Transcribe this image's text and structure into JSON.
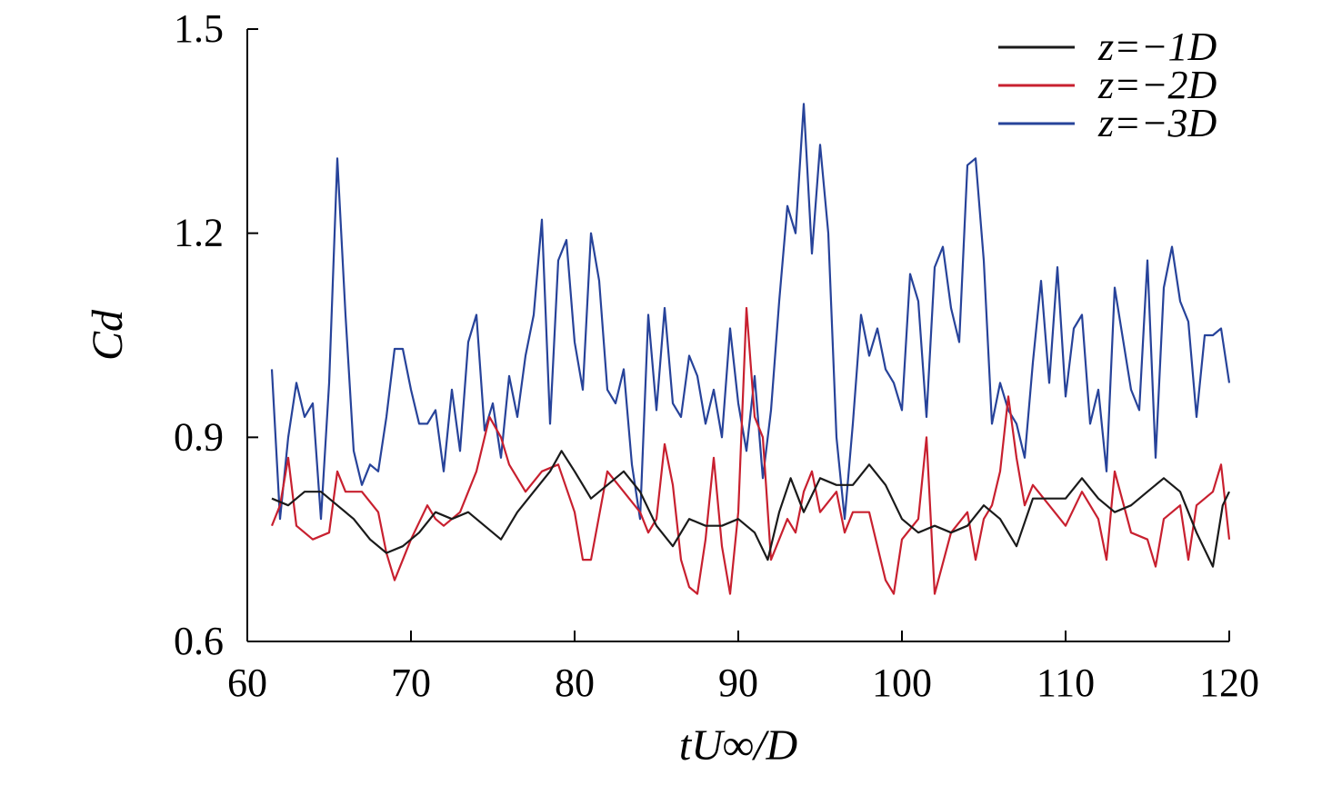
{
  "chart_data": {
    "type": "line",
    "xlabel": "tU∞/D",
    "ylabel": "Cd",
    "xlim": [
      60,
      120
    ],
    "ylim": [
      0.6,
      1.5
    ],
    "xticks": [
      "60",
      "70",
      "80",
      "90",
      "100",
      "110",
      "120"
    ],
    "yticks": [
      "0.6",
      "0.9",
      "1.2",
      "1.5"
    ],
    "grid": false,
    "legend_position": "top-right",
    "series": [
      {
        "name": "z=−1D",
        "color": "#1a1a1a",
        "points": [
          [
            61.5,
            0.81
          ],
          [
            62.5,
            0.8
          ],
          [
            63.5,
            0.82
          ],
          [
            64.5,
            0.82
          ],
          [
            65.5,
            0.8
          ],
          [
            66.5,
            0.78
          ],
          [
            67.5,
            0.75
          ],
          [
            68.5,
            0.73
          ],
          [
            69.5,
            0.74
          ],
          [
            70.5,
            0.76
          ],
          [
            71.5,
            0.79
          ],
          [
            72.5,
            0.78
          ],
          [
            73.5,
            0.79
          ],
          [
            74.5,
            0.77
          ],
          [
            75.5,
            0.75
          ],
          [
            76.5,
            0.79
          ],
          [
            77.5,
            0.82
          ],
          [
            78.5,
            0.85
          ],
          [
            79.2,
            0.88
          ],
          [
            80,
            0.85
          ],
          [
            81,
            0.81
          ],
          [
            82,
            0.83
          ],
          [
            83,
            0.85
          ],
          [
            84,
            0.82
          ],
          [
            85,
            0.77
          ],
          [
            86,
            0.74
          ],
          [
            87,
            0.78
          ],
          [
            88,
            0.77
          ],
          [
            89,
            0.77
          ],
          [
            90,
            0.78
          ],
          [
            91,
            0.76
          ],
          [
            91.8,
            0.72
          ],
          [
            92.5,
            0.79
          ],
          [
            93.2,
            0.84
          ],
          [
            94,
            0.79
          ],
          [
            95,
            0.84
          ],
          [
            96,
            0.83
          ],
          [
            97,
            0.83
          ],
          [
            98,
            0.86
          ],
          [
            99,
            0.83
          ],
          [
            100,
            0.78
          ],
          [
            101,
            0.76
          ],
          [
            102,
            0.77
          ],
          [
            103,
            0.76
          ],
          [
            104,
            0.77
          ],
          [
            105,
            0.8
          ],
          [
            106,
            0.78
          ],
          [
            107,
            0.74
          ],
          [
            108,
            0.81
          ],
          [
            109,
            0.81
          ],
          [
            110,
            0.81
          ],
          [
            111,
            0.84
          ],
          [
            112,
            0.81
          ],
          [
            113,
            0.79
          ],
          [
            114,
            0.8
          ],
          [
            115,
            0.82
          ],
          [
            116,
            0.84
          ],
          [
            117,
            0.82
          ],
          [
            118,
            0.76
          ],
          [
            119,
            0.71
          ],
          [
            119.6,
            0.8
          ],
          [
            120,
            0.82
          ]
        ]
      },
      {
        "name": "z=−2D",
        "color": "#c8202f",
        "points": [
          [
            61.5,
            0.77
          ],
          [
            62,
            0.8
          ],
          [
            62.5,
            0.87
          ],
          [
            63,
            0.77
          ],
          [
            64,
            0.75
          ],
          [
            65,
            0.76
          ],
          [
            65.5,
            0.85
          ],
          [
            66,
            0.82
          ],
          [
            67,
            0.82
          ],
          [
            68,
            0.79
          ],
          [
            68.5,
            0.73
          ],
          [
            69,
            0.69
          ],
          [
            70,
            0.75
          ],
          [
            71,
            0.8
          ],
          [
            71.5,
            0.78
          ],
          [
            72,
            0.77
          ],
          [
            73,
            0.79
          ],
          [
            74,
            0.85
          ],
          [
            74.8,
            0.93
          ],
          [
            75.5,
            0.9
          ],
          [
            76,
            0.86
          ],
          [
            77,
            0.82
          ],
          [
            78,
            0.85
          ],
          [
            79,
            0.86
          ],
          [
            80,
            0.79
          ],
          [
            80.5,
            0.72
          ],
          [
            81,
            0.72
          ],
          [
            82,
            0.85
          ],
          [
            83,
            0.82
          ],
          [
            84,
            0.79
          ],
          [
            84.5,
            0.76
          ],
          [
            85,
            0.78
          ],
          [
            85.5,
            0.89
          ],
          [
            86,
            0.83
          ],
          [
            86.5,
            0.72
          ],
          [
            87,
            0.68
          ],
          [
            87.5,
            0.67
          ],
          [
            88,
            0.75
          ],
          [
            88.5,
            0.87
          ],
          [
            89,
            0.74
          ],
          [
            89.5,
            0.67
          ],
          [
            90,
            0.79
          ],
          [
            90.5,
            1.09
          ],
          [
            91,
            0.93
          ],
          [
            91.5,
            0.9
          ],
          [
            92,
            0.72
          ],
          [
            93,
            0.78
          ],
          [
            93.5,
            0.76
          ],
          [
            94,
            0.82
          ],
          [
            94.5,
            0.85
          ],
          [
            95,
            0.79
          ],
          [
            96,
            0.82
          ],
          [
            96.5,
            0.76
          ],
          [
            97,
            0.79
          ],
          [
            98,
            0.79
          ],
          [
            98.5,
            0.74
          ],
          [
            99,
            0.69
          ],
          [
            99.5,
            0.67
          ],
          [
            100,
            0.75
          ],
          [
            101,
            0.78
          ],
          [
            101.5,
            0.9
          ],
          [
            102,
            0.67
          ],
          [
            103,
            0.76
          ],
          [
            104,
            0.79
          ],
          [
            104.5,
            0.72
          ],
          [
            105,
            0.78
          ],
          [
            105.5,
            0.8
          ],
          [
            106,
            0.85
          ],
          [
            106.5,
            0.96
          ],
          [
            107,
            0.87
          ],
          [
            107.5,
            0.8
          ],
          [
            108,
            0.83
          ],
          [
            109,
            0.8
          ],
          [
            110,
            0.77
          ],
          [
            111,
            0.82
          ],
          [
            112,
            0.78
          ],
          [
            112.5,
            0.72
          ],
          [
            113,
            0.85
          ],
          [
            114,
            0.76
          ],
          [
            115,
            0.75
          ],
          [
            115.5,
            0.71
          ],
          [
            116,
            0.78
          ],
          [
            117,
            0.8
          ],
          [
            117.5,
            0.72
          ],
          [
            118,
            0.8
          ],
          [
            119,
            0.82
          ],
          [
            119.5,
            0.86
          ],
          [
            120,
            0.75
          ]
        ]
      },
      {
        "name": "z=−3D",
        "color": "#27439a",
        "points": [
          [
            61.5,
            1.0
          ],
          [
            62,
            0.78
          ],
          [
            62.5,
            0.9
          ],
          [
            63,
            0.98
          ],
          [
            63.5,
            0.93
          ],
          [
            64,
            0.95
          ],
          [
            64.5,
            0.78
          ],
          [
            65,
            0.98
          ],
          [
            65.5,
            1.31
          ],
          [
            66,
            1.08
          ],
          [
            66.5,
            0.88
          ],
          [
            67,
            0.83
          ],
          [
            67.5,
            0.86
          ],
          [
            68,
            0.85
          ],
          [
            68.5,
            0.93
          ],
          [
            69,
            1.03
          ],
          [
            69.5,
            1.03
          ],
          [
            70,
            0.97
          ],
          [
            70.5,
            0.92
          ],
          [
            71,
            0.92
          ],
          [
            71.5,
            0.94
          ],
          [
            72,
            0.85
          ],
          [
            72.5,
            0.97
          ],
          [
            73,
            0.88
          ],
          [
            73.5,
            1.04
          ],
          [
            74,
            1.08
          ],
          [
            74.5,
            0.91
          ],
          [
            75,
            0.95
          ],
          [
            75.5,
            0.87
          ],
          [
            76,
            0.99
          ],
          [
            76.5,
            0.93
          ],
          [
            77,
            1.02
          ],
          [
            77.5,
            1.08
          ],
          [
            78,
            1.22
          ],
          [
            78.5,
            0.92
          ],
          [
            79,
            1.16
          ],
          [
            79.5,
            1.19
          ],
          [
            80,
            1.04
          ],
          [
            80.5,
            0.97
          ],
          [
            81,
            1.2
          ],
          [
            81.5,
            1.13
          ],
          [
            82,
            0.97
          ],
          [
            82.5,
            0.95
          ],
          [
            83,
            1.0
          ],
          [
            83.5,
            0.86
          ],
          [
            84,
            0.78
          ],
          [
            84.5,
            1.08
          ],
          [
            85,
            0.94
          ],
          [
            85.5,
            1.09
          ],
          [
            86,
            0.95
          ],
          [
            86.5,
            0.93
          ],
          [
            87,
            1.02
          ],
          [
            87.5,
            0.99
          ],
          [
            88,
            0.92
          ],
          [
            88.5,
            0.97
          ],
          [
            89,
            0.9
          ],
          [
            89.5,
            1.06
          ],
          [
            90,
            0.95
          ],
          [
            90.5,
            0.88
          ],
          [
            91,
            0.99
          ],
          [
            91.5,
            0.84
          ],
          [
            92,
            0.94
          ],
          [
            92.5,
            1.1
          ],
          [
            93,
            1.24
          ],
          [
            93.5,
            1.2
          ],
          [
            94,
            1.39
          ],
          [
            94.5,
            1.17
          ],
          [
            95,
            1.33
          ],
          [
            95.5,
            1.2
          ],
          [
            96,
            0.9
          ],
          [
            96.5,
            0.78
          ],
          [
            97,
            0.92
          ],
          [
            97.5,
            1.08
          ],
          [
            98,
            1.02
          ],
          [
            98.5,
            1.06
          ],
          [
            99,
            1.0
          ],
          [
            99.5,
            0.98
          ],
          [
            100,
            0.94
          ],
          [
            100.5,
            1.14
          ],
          [
            101,
            1.1
          ],
          [
            101.5,
            0.93
          ],
          [
            102,
            1.15
          ],
          [
            102.5,
            1.18
          ],
          [
            103,
            1.09
          ],
          [
            103.5,
            1.04
          ],
          [
            104,
            1.3
          ],
          [
            104.5,
            1.31
          ],
          [
            105,
            1.16
          ],
          [
            105.5,
            0.92
          ],
          [
            106,
            0.98
          ],
          [
            106.5,
            0.94
          ],
          [
            107,
            0.92
          ],
          [
            107.5,
            0.87
          ],
          [
            108,
            1.01
          ],
          [
            108.5,
            1.13
          ],
          [
            109,
            0.98
          ],
          [
            109.5,
            1.15
          ],
          [
            110,
            0.96
          ],
          [
            110.5,
            1.06
          ],
          [
            111,
            1.08
          ],
          [
            111.5,
            0.92
          ],
          [
            112,
            0.97
          ],
          [
            112.5,
            0.85
          ],
          [
            113,
            1.12
          ],
          [
            114,
            0.97
          ],
          [
            114.5,
            0.94
          ],
          [
            115,
            1.16
          ],
          [
            115.5,
            0.87
          ],
          [
            116,
            1.12
          ],
          [
            116.5,
            1.18
          ],
          [
            117,
            1.1
          ],
          [
            117.5,
            1.07
          ],
          [
            118,
            0.93
          ],
          [
            118.5,
            1.05
          ],
          [
            119,
            1.05
          ],
          [
            119.5,
            1.06
          ],
          [
            120,
            0.98
          ]
        ]
      }
    ]
  }
}
